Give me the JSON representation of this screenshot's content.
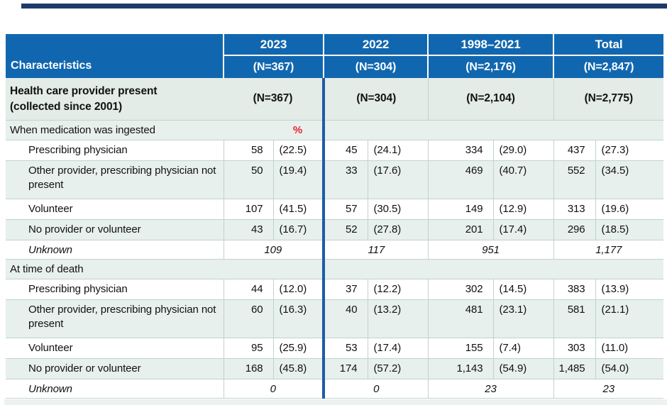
{
  "table": {
    "characteristics_label": "Characteristics",
    "columns": [
      {
        "year": "2023",
        "n": "(N=367)"
      },
      {
        "year": "2022",
        "n": "(N=304)"
      },
      {
        "year": "1998–2021",
        "n": "(N=2,176)"
      },
      {
        "year": "Total",
        "n": "(N=2,847)"
      }
    ],
    "section": {
      "label_line1": "Health care provider present",
      "label_line2": "(collected since 2001)",
      "ns": [
        "(N=367)",
        "(N=304)",
        "(N=2,104)",
        "(N=2,775)"
      ]
    },
    "subsections": [
      {
        "label": "When medication was ingested",
        "pct_symbol": "%",
        "rows": [
          {
            "label": "Prescribing physician",
            "values": [
              [
                "58",
                "(22.5)"
              ],
              [
                "45",
                "(24.1)"
              ],
              [
                "334",
                "(29.0)"
              ],
              [
                "437",
                "(27.3)"
              ]
            ]
          },
          {
            "label": "Other provider, prescribing physician not present",
            "values": [
              [
                "50",
                "(19.4)"
              ],
              [
                "33",
                "(17.6)"
              ],
              [
                "469",
                "(40.7)"
              ],
              [
                "552",
                "(34.5)"
              ]
            ]
          },
          {
            "label": "Volunteer",
            "values": [
              [
                "107",
                "(41.5)"
              ],
              [
                "57",
                "(30.5)"
              ],
              [
                "149",
                "(12.9)"
              ],
              [
                "313",
                "(19.6)"
              ]
            ]
          },
          {
            "label": "No provider or volunteer",
            "values": [
              [
                "43",
                "(16.7)"
              ],
              [
                "52",
                "(27.8)"
              ],
              [
                "201",
                "(17.4)"
              ],
              [
                "296",
                "(18.5)"
              ]
            ]
          }
        ],
        "unknown": {
          "label": "Unknown",
          "values": [
            "109",
            "117",
            "951",
            "1,177"
          ]
        }
      },
      {
        "label": "At time of death",
        "pct_symbol": "",
        "rows": [
          {
            "label": "Prescribing physician",
            "values": [
              [
                "44",
                "(12.0)"
              ],
              [
                "37",
                "(12.2)"
              ],
              [
                "302",
                "(14.5)"
              ],
              [
                "383",
                "(13.9)"
              ]
            ]
          },
          {
            "label": "Other provider, prescribing physician not present",
            "values": [
              [
                "60",
                "(16.3)"
              ],
              [
                "40",
                "(13.2)"
              ],
              [
                "481",
                "(23.1)"
              ],
              [
                "581",
                "(21.1)"
              ]
            ]
          },
          {
            "label": "Volunteer",
            "values": [
              [
                "95",
                "(25.9)"
              ],
              [
                "53",
                "(17.4)"
              ],
              [
                "155",
                "(7.4)"
              ],
              [
                "303",
                "(11.0)"
              ]
            ]
          },
          {
            "label": "No provider or volunteer",
            "values": [
              [
                "168",
                "(45.8)"
              ],
              [
                "174",
                "(57.2)"
              ],
              [
                "1,143",
                "(54.9)"
              ],
              [
                "1,485",
                "(54.0)"
              ]
            ]
          }
        ],
        "unknown": {
          "label": "Unknown",
          "values": [
            "0",
            "0",
            "23",
            "23"
          ]
        }
      }
    ]
  },
  "colors": {
    "header_blue": "#1167af",
    "top_bar_navy": "#1e3a6a",
    "group_divider_blue": "#1d5ba8",
    "stripe_pale": "#e7f0ec",
    "percent_symbol_red": "#ec2033"
  }
}
